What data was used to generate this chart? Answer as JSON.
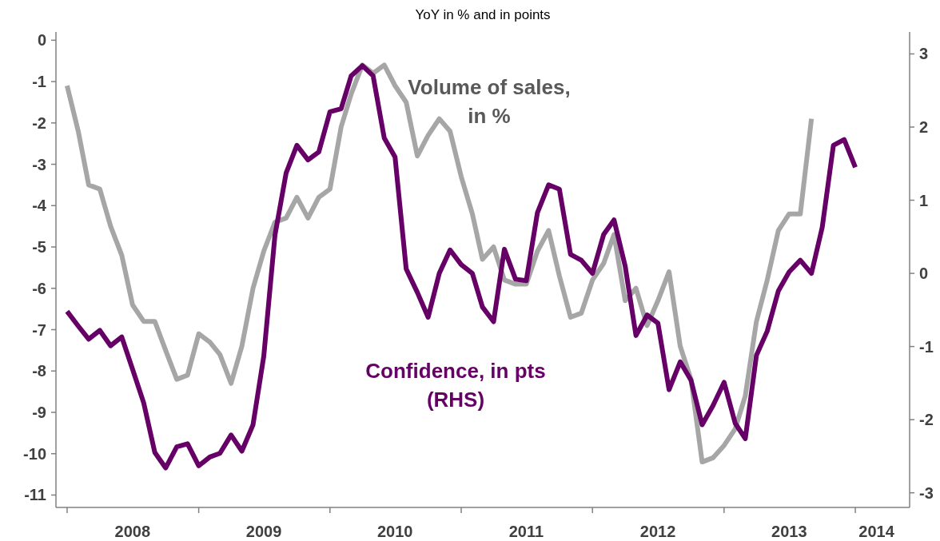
{
  "chart_data": {
    "type": "line",
    "title": "YoY in % and in points",
    "x": [
      "2008-01",
      "2008-02",
      "2008-03",
      "2008-04",
      "2008-05",
      "2008-06",
      "2008-07",
      "2008-08",
      "2008-09",
      "2008-10",
      "2008-11",
      "2008-12",
      "2009-01",
      "2009-02",
      "2009-03",
      "2009-04",
      "2009-05",
      "2009-06",
      "2009-07",
      "2009-08",
      "2009-09",
      "2009-10",
      "2009-11",
      "2009-12",
      "2010-01",
      "2010-02",
      "2010-03",
      "2010-04",
      "2010-05",
      "2010-06",
      "2010-07",
      "2010-08",
      "2010-09",
      "2010-10",
      "2010-11",
      "2010-12",
      "2011-01",
      "2011-02",
      "2011-03",
      "2011-04",
      "2011-05",
      "2011-06",
      "2011-07",
      "2011-08",
      "2011-09",
      "2011-10",
      "2011-11",
      "2011-12",
      "2012-01",
      "2012-02",
      "2012-03",
      "2012-04",
      "2012-05",
      "2012-06",
      "2012-07",
      "2012-08",
      "2012-09",
      "2012-10",
      "2012-11",
      "2012-12",
      "2013-01",
      "2013-02",
      "2013-03",
      "2013-04",
      "2013-05",
      "2013-06",
      "2013-07",
      "2013-08",
      "2013-09",
      "2013-10",
      "2013-11",
      "2013-12",
      "2014-01"
    ],
    "series": [
      {
        "name": "Volume of sales, in %",
        "color": "#a6a6a6",
        "values": [
          -1.1,
          -2.2,
          -3.5,
          -3.6,
          -4.5,
          -5.2,
          -6.4,
          -6.8,
          -6.8,
          -7.5,
          -8.2,
          -8.1,
          -7.1,
          -7.3,
          -7.6,
          -8.3,
          -7.4,
          -6.0,
          -5.1,
          -4.4,
          -4.3,
          -3.8,
          -4.3,
          -3.8,
          -3.6,
          -2.1,
          -1.3,
          -0.6,
          -0.8,
          -0.6,
          -1.1,
          -1.5,
          -2.8,
          -2.3,
          -1.9,
          -2.2,
          -3.3,
          -4.2,
          -5.3,
          -5.0,
          -5.8,
          -5.9,
          -5.9,
          -5.1,
          -4.6,
          -5.7,
          -6.7,
          -6.6,
          -5.8,
          -5.4,
          -4.7,
          -6.3,
          -6.0,
          -6.9,
          -6.3,
          -5.6,
          -7.4,
          -8.2,
          -10.2,
          -10.1,
          -9.8,
          -9.4,
          -8.6,
          -6.8,
          -5.8,
          -4.6,
          -4.2,
          -4.2,
          -1.9,
          null,
          null,
          null,
          null
        ]
      },
      {
        "name": "Confidence, in pts (RHS)",
        "color": "#660066",
        "axis": "y2",
        "values": [
          -0.52,
          -0.72,
          -0.9,
          -0.78,
          -0.99,
          -0.87,
          -1.31,
          -1.77,
          -2.45,
          -2.66,
          -2.37,
          -2.33,
          -2.63,
          -2.51,
          -2.46,
          -2.21,
          -2.43,
          -2.07,
          -1.13,
          0.52,
          1.37,
          1.75,
          1.55,
          1.66,
          2.21,
          2.25,
          2.7,
          2.84,
          2.7,
          1.85,
          1.59,
          0.06,
          -0.26,
          -0.6,
          0.0,
          0.32,
          0.12,
          0.0,
          -0.46,
          -0.66,
          0.33,
          -0.08,
          -0.1,
          0.83,
          1.21,
          1.15,
          0.26,
          0.18,
          0.0,
          0.53,
          0.73,
          0.1,
          -0.85,
          -0.57,
          -0.68,
          -1.59,
          -1.21,
          -1.46,
          -2.07,
          -1.81,
          -1.49,
          -2.05,
          -2.26,
          -1.12,
          -0.79,
          -0.24,
          0.02,
          0.18,
          0.0,
          0.63,
          1.75,
          1.83,
          1.45
        ]
      }
    ],
    "xlim": [
      "2007-12",
      "2014-06"
    ],
    "xticks": [
      {
        "value": "2008-01",
        "label": null
      },
      {
        "value": "2008-07",
        "label": "2008"
      },
      {
        "value": "2009-01",
        "label": null
      },
      {
        "value": "2009-07",
        "label": "2009"
      },
      {
        "value": "2010-01",
        "label": null
      },
      {
        "value": "2010-07",
        "label": "2010"
      },
      {
        "value": "2011-01",
        "label": null
      },
      {
        "value": "2011-07",
        "label": "2011"
      },
      {
        "value": "2012-01",
        "label": null
      },
      {
        "value": "2012-07",
        "label": "2012"
      },
      {
        "value": "2013-01",
        "label": null
      },
      {
        "value": "2013-07",
        "label": "2013"
      },
      {
        "value": "2014-01",
        "label": null
      },
      {
        "value": "2014-03",
        "label": "2014"
      }
    ],
    "ylim": [
      -11.3,
      0.2
    ],
    "yticks": [
      0,
      -1,
      -2,
      -3,
      -4,
      -5,
      -6,
      -7,
      -8,
      -9,
      -10,
      -11
    ],
    "y2lim": [
      -3.2,
      3.3
    ],
    "y2ticks": [
      3,
      2,
      1,
      0,
      -1,
      -2,
      -3
    ]
  }
}
